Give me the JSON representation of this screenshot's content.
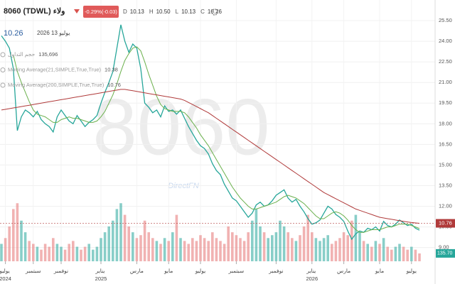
{
  "chart_data": {
    "type": "line",
    "title": "8060 (TDWL) ولاء",
    "change": "-0.29%(-0.03)",
    "ohlc": [
      {
        "label": "D",
        "value": "10.13"
      },
      {
        "label": "H",
        "value": "10.50"
      },
      {
        "label": "L",
        "value": "10.13"
      },
      {
        "label": "C",
        "value": "10.26"
      }
    ],
    "last_price": "10.26",
    "date": "يوليو 13 2026",
    "watermark": "8060",
    "brand": "DirectFN",
    "legend": [
      {
        "name": "حجم التداول",
        "value": "135,696"
      },
      {
        "name": "Moving Average(21,SIMPLE,True,True)",
        "value": "10.38"
      },
      {
        "name": "Moving Average(200,SIMPLE,True,True)",
        "value": "10.76"
      }
    ],
    "volume_badge": "135.70",
    "categories": [
      null,
      "يوليو 2024",
      null,
      null,
      null,
      null,
      null,
      null,
      "سبتمبر",
      null,
      null,
      null,
      null,
      null,
      null,
      "نوفمبر",
      null,
      null,
      null,
      null,
      null,
      null,
      null,
      null,
      null,
      "يناير 2025",
      null,
      null,
      null,
      null,
      null,
      null,
      null,
      null,
      "مارس",
      null,
      null,
      null,
      null,
      null,
      null,
      null,
      "مايو",
      null,
      null,
      null,
      null,
      null,
      null,
      null,
      "يوليو",
      null,
      null,
      null,
      null,
      null,
      null,
      null,
      null,
      "سبتمبر",
      null,
      null,
      null,
      null,
      null,
      null,
      null,
      null,
      null,
      "نوفمبر",
      null,
      null,
      null,
      null,
      null,
      null,
      null,
      null,
      "يناير 2026",
      null,
      null,
      null,
      null,
      null,
      null,
      null,
      "مارس",
      null,
      null,
      null,
      null,
      null,
      null,
      null,
      null,
      "مايو",
      null,
      null,
      null,
      null,
      null,
      null,
      null,
      "يوليو",
      null,
      null
    ],
    "series": [
      {
        "name": "price",
        "color": "#26a69a",
        "values": [
          24.4,
          24.0,
          23.5,
          22.0,
          17.5,
          18.5,
          19.0,
          18.8,
          18.5,
          18.9,
          18.3,
          18.0,
          17.8,
          17.4,
          18.5,
          19.0,
          18.6,
          18.2,
          18.0,
          18.6,
          18.2,
          17.8,
          18.1,
          18.3,
          18.6,
          19.5,
          20.3,
          21.0,
          21.8,
          23.5,
          25.2,
          24.0,
          23.2,
          23.8,
          23.5,
          22.0,
          19.5,
          19.2,
          18.8,
          19.0,
          18.5,
          19.3,
          18.9,
          19.0,
          18.7,
          19.0,
          18.4,
          17.8,
          17.3,
          16.8,
          16.4,
          16.2,
          15.8,
          15.1,
          14.6,
          14.3,
          13.6,
          13.1,
          12.6,
          12.4,
          12.0,
          11.6,
          11.2,
          11.5,
          12.1,
          12.3,
          12.0,
          12.1,
          12.4,
          12.8,
          13.0,
          13.2,
          12.6,
          12.3,
          12.5,
          12.0,
          11.6,
          11.1,
          10.7,
          10.8,
          11.0,
          11.5,
          12.0,
          11.8,
          11.4,
          11.2,
          10.9,
          10.2,
          9.6,
          10.0,
          10.2,
          10.1,
          10.4,
          10.3,
          10.5,
          10.2,
          10.9,
          10.6,
          10.5,
          10.7,
          11.0,
          10.8,
          10.6,
          10.7,
          10.4,
          10.26
        ]
      },
      {
        "name": "Moving Average(21,SIMPLE,True,True)",
        "color": "#6ab04c",
        "values": [
          null,
          null,
          null,
          23.0,
          21.8,
          21.0,
          20.3,
          19.6,
          19.0,
          18.7,
          18.6,
          18.5,
          18.3,
          18.1,
          18.1,
          18.3,
          18.4,
          18.5,
          18.4,
          18.4,
          18.3,
          18.2,
          18.1,
          18.1,
          18.2,
          18.5,
          18.9,
          19.5,
          20.1,
          20.9,
          21.8,
          22.6,
          23.1,
          23.5,
          23.6,
          23.3,
          22.5,
          21.6,
          20.8,
          20.0,
          19.4,
          19.1,
          19.0,
          18.9,
          18.9,
          18.9,
          18.8,
          18.5,
          18.1,
          17.7,
          17.2,
          16.8,
          16.4,
          15.9,
          15.4,
          14.9,
          14.4,
          13.9,
          13.4,
          13.0,
          12.6,
          12.3,
          12.0,
          11.8,
          11.8,
          11.9,
          12.0,
          12.1,
          12.2,
          12.3,
          12.5,
          12.7,
          12.8,
          12.7,
          12.6,
          12.4,
          12.2,
          11.9,
          11.6,
          11.3,
          11.1,
          11.1,
          11.3,
          11.5,
          11.6,
          11.5,
          11.3,
          11.0,
          10.6,
          10.3,
          10.1,
          10.1,
          10.2,
          10.3,
          10.3,
          10.3,
          10.4,
          10.5,
          10.5,
          10.6,
          10.7,
          10.7,
          10.7,
          10.6,
          10.5,
          10.38
        ]
      },
      {
        "name": "Moving Average(200,SIMPLE,True,True)",
        "color": "#b03a3a",
        "values": [
          19.0,
          19.05,
          19.1,
          19.15,
          19.2,
          19.25,
          19.3,
          19.35,
          19.4,
          19.45,
          19.5,
          19.55,
          19.6,
          19.65,
          19.7,
          19.75,
          19.8,
          19.85,
          19.9,
          19.95,
          20.0,
          20.05,
          20.1,
          20.15,
          20.2,
          20.25,
          20.3,
          20.35,
          20.4,
          20.45,
          20.5,
          20.5,
          20.45,
          20.4,
          20.35,
          20.3,
          20.25,
          20.2,
          20.15,
          20.1,
          20.05,
          20.0,
          19.95,
          19.9,
          19.85,
          19.8,
          19.7,
          19.55,
          19.4,
          19.25,
          19.1,
          18.95,
          18.8,
          18.6,
          18.4,
          18.2,
          18.0,
          17.8,
          17.6,
          17.4,
          17.2,
          17.0,
          16.8,
          16.6,
          16.4,
          16.2,
          16.0,
          15.8,
          15.6,
          15.4,
          15.2,
          15.0,
          14.8,
          14.6,
          14.4,
          14.2,
          14.0,
          13.8,
          13.6,
          13.4,
          13.2,
          13.0,
          12.85,
          12.7,
          12.55,
          12.4,
          12.25,
          12.1,
          11.95,
          11.8,
          11.7,
          11.6,
          11.5,
          11.4,
          11.3,
          11.2,
          11.15,
          11.1,
          11.05,
          11.0,
          10.95,
          10.9,
          10.86,
          10.82,
          10.79,
          10.76
        ]
      },
      {
        "name": "volume",
        "color": "#26a69a",
        "axis": "y2",
        "values": [
          300,
          400,
          600,
          900,
          1000,
          700,
          500,
          350,
          300,
          250,
          200,
          300,
          250,
          400,
          300,
          250,
          200,
          300,
          350,
          250,
          200,
          250,
          300,
          200,
          250,
          400,
          500,
          600,
          700,
          900,
          1000,
          800,
          600,
          500,
          400,
          450,
          700,
          500,
          400,
          350,
          300,
          400,
          350,
          500,
          800,
          400,
          350,
          300,
          400,
          350,
          450,
          400,
          350,
          500,
          400,
          350,
          300,
          600,
          500,
          450,
          400,
          350,
          500,
          700,
          900,
          600,
          500,
          400,
          450,
          500,
          700,
          600,
          500,
          400,
          350,
          450,
          600,
          800,
          500,
          400,
          350,
          400,
          450,
          300,
          350,
          400,
          500,
          450,
          700,
          800,
          500,
          350,
          300,
          250,
          350,
          300,
          400,
          250,
          200,
          250,
          300,
          250,
          200,
          250,
          200,
          135.7
        ]
      }
    ],
    "ylim": [
      8.0,
      27.0
    ],
    "yticks": [
      {
        "value": 9,
        "label": "9.00"
      },
      {
        "value": 10.5,
        "label": "10.50"
      },
      {
        "value": 12,
        "label": "12.00"
      },
      {
        "value": 13.5,
        "label": "13.50"
      },
      {
        "value": 15,
        "label": "15.00"
      },
      {
        "value": 16.5,
        "label": "16.50"
      },
      {
        "value": 18,
        "label": "18.00"
      },
      {
        "value": 19.5,
        "label": "19.50"
      },
      {
        "value": 21,
        "label": "21.00"
      },
      {
        "value": 22.5,
        "label": "22.50"
      },
      {
        "value": 24,
        "label": "24.00"
      },
      {
        "value": 25.5,
        "label": "25.50"
      }
    ],
    "y2lim": [
      0,
      4500
    ],
    "grid": true
  }
}
